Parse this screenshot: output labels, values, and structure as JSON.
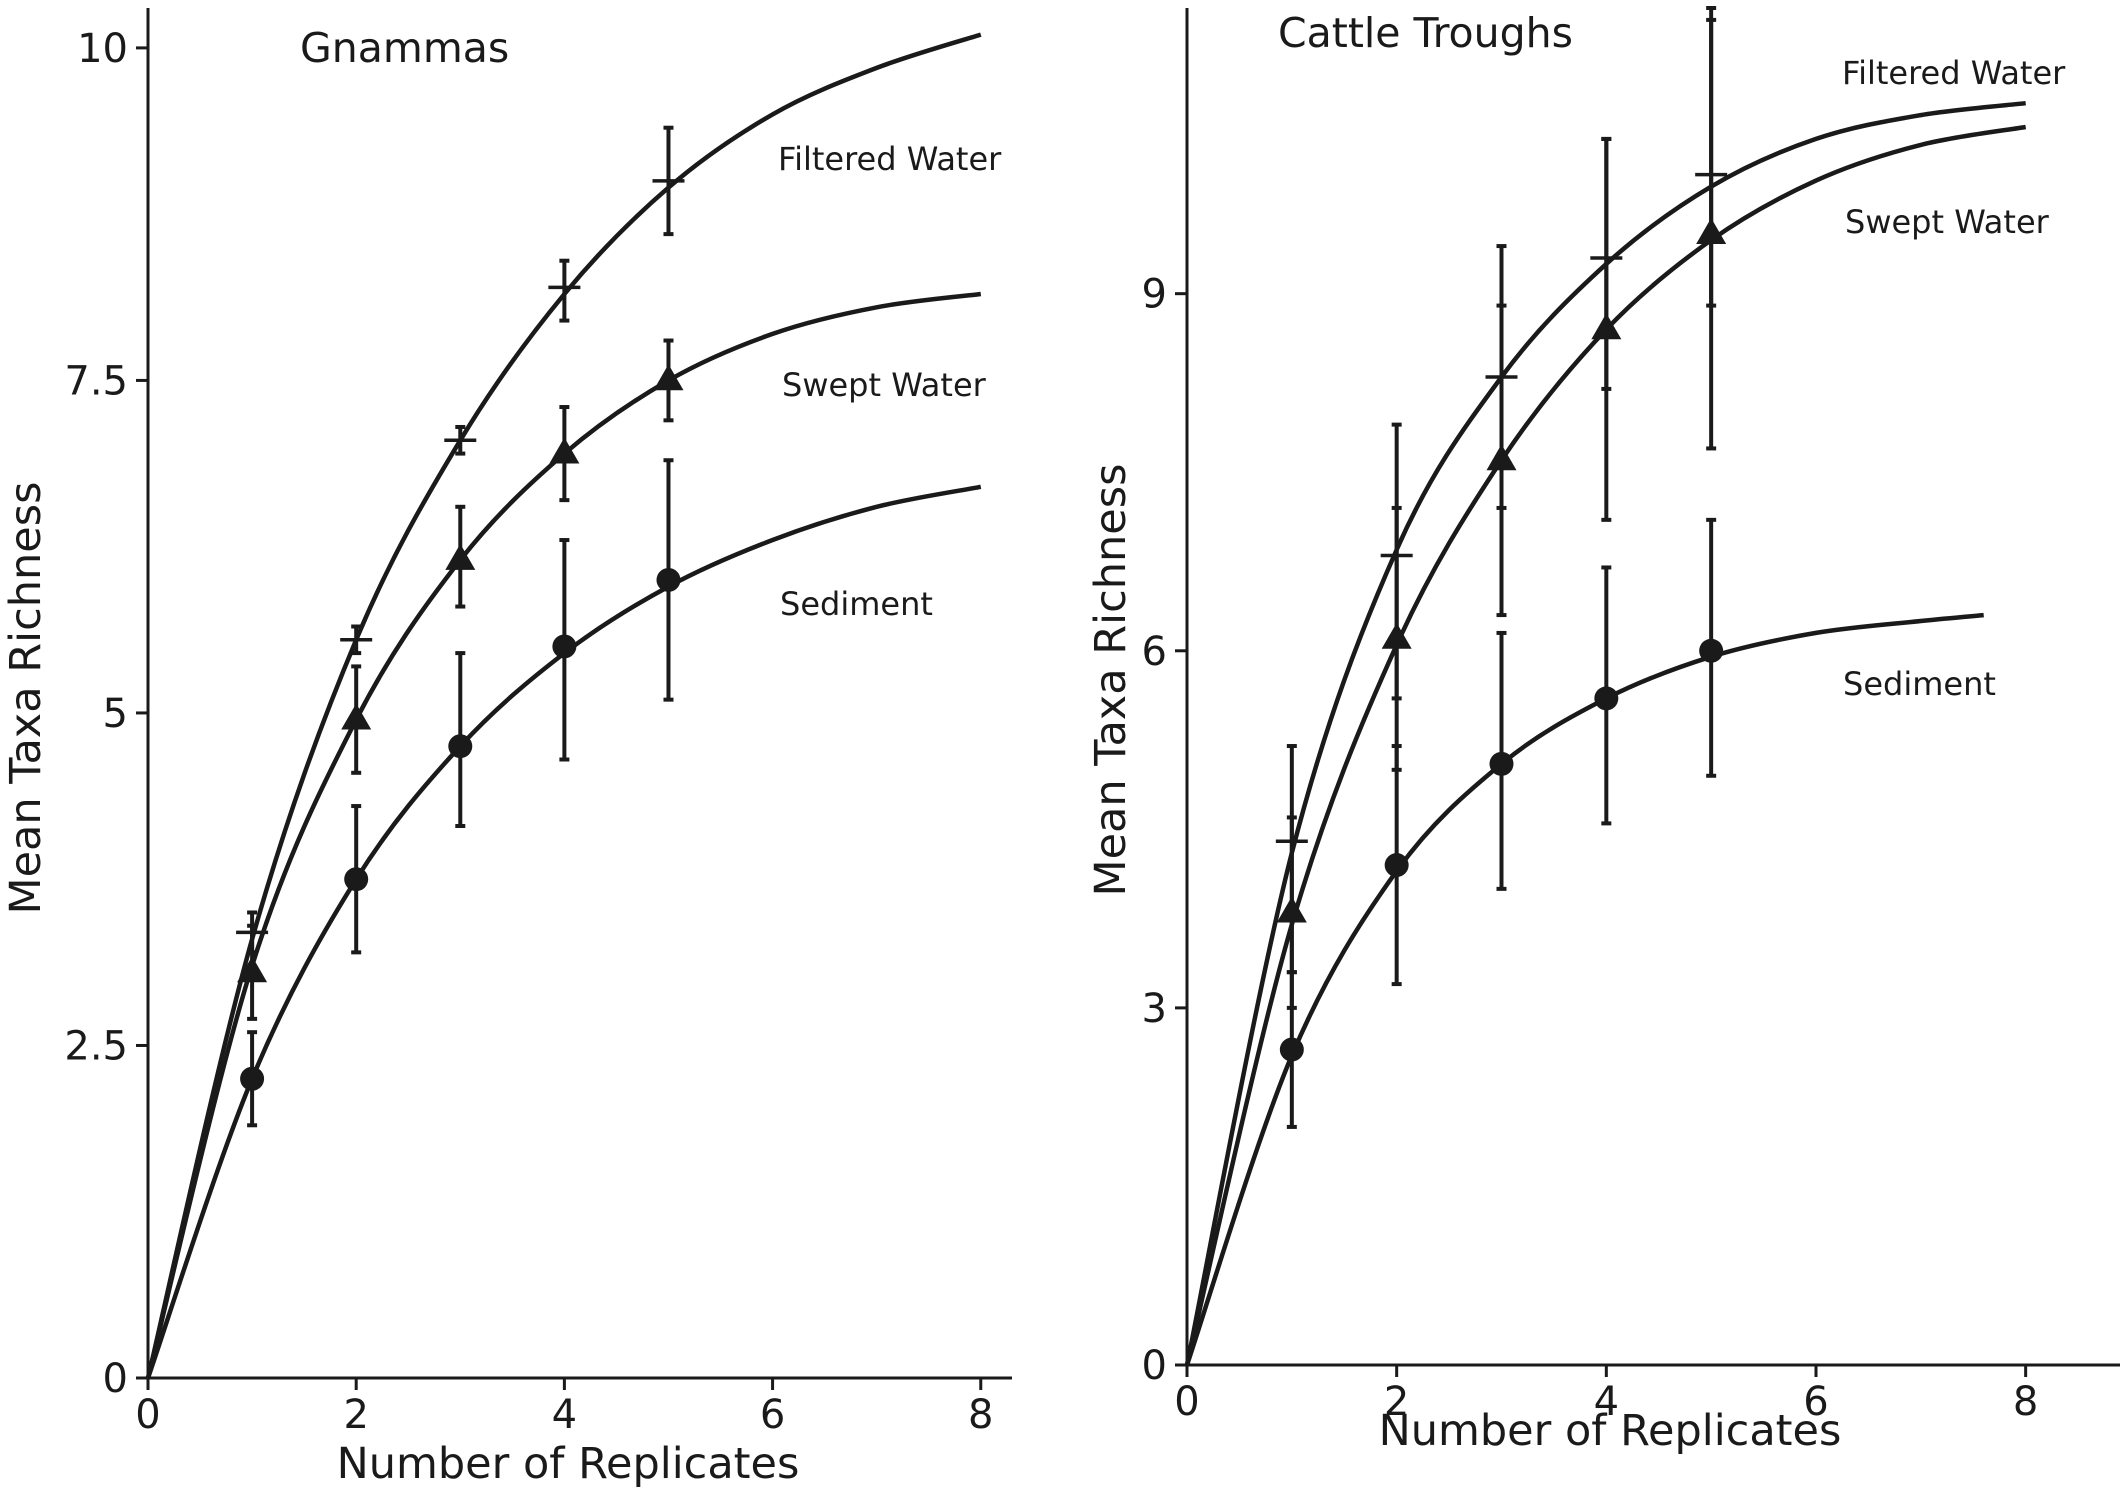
{
  "colors": {
    "ink": "#1a1a1a",
    "background": "#ffffff"
  },
  "chart_data": [
    {
      "type": "line",
      "title": "Gnammas",
      "xlabel": "Number of Replicates",
      "ylabel": "Mean Taxa Richness",
      "xlim": [
        0,
        8.3
      ],
      "ylim": [
        0,
        10.3
      ],
      "xticks": [
        "0",
        "2",
        "4",
        "6",
        "8"
      ],
      "yticks": [
        "0",
        "2.5",
        "5",
        "7.5",
        "10"
      ],
      "series": [
        {
          "name": "Filtered Water",
          "marker": "plus",
          "x": [
            1,
            2,
            3,
            4,
            5
          ],
          "y": [
            3.35,
            5.55,
            7.05,
            8.2,
            9.0
          ],
          "err_low": [
            3.2,
            5.45,
            6.95,
            7.95,
            8.6
          ],
          "err_high": [
            3.5,
            5.65,
            7.15,
            8.4,
            9.4
          ],
          "curve": {
            "x": [
              0,
              1,
              2,
              3,
              4,
              5,
              6,
              7,
              8
            ],
            "y": [
              0,
              3.3,
              5.55,
              7.05,
              8.15,
              8.95,
              9.5,
              9.85,
              10.1
            ]
          }
        },
        {
          "name": "Swept Water",
          "marker": "triangle",
          "x": [
            1,
            2,
            3,
            4,
            5
          ],
          "y": [
            3.05,
            4.95,
            6.15,
            6.95,
            7.5
          ],
          "err_low": [
            2.7,
            4.55,
            5.8,
            6.6,
            7.2
          ],
          "err_high": [
            3.4,
            5.35,
            6.55,
            7.3,
            7.8
          ],
          "curve": {
            "x": [
              0,
              1,
              2,
              3,
              4,
              5,
              6,
              7,
              8
            ],
            "y": [
              0,
              3.1,
              4.95,
              6.15,
              6.95,
              7.5,
              7.85,
              8.05,
              8.15
            ]
          }
        },
        {
          "name": "Sediment",
          "marker": "circle",
          "x": [
            1,
            2,
            3,
            4,
            5
          ],
          "y": [
            2.25,
            3.75,
            4.75,
            5.5,
            6.0
          ],
          "err_low": [
            1.9,
            3.2,
            4.15,
            4.65,
            5.1
          ],
          "err_high": [
            2.6,
            4.3,
            5.45,
            6.3,
            6.9
          ],
          "curve": {
            "x": [
              0,
              1,
              2,
              3,
              4,
              5,
              6,
              7,
              8
            ],
            "y": [
              0,
              2.25,
              3.75,
              4.75,
              5.45,
              5.95,
              6.3,
              6.55,
              6.7
            ]
          }
        }
      ]
    },
    {
      "type": "line",
      "title": "Cattle Troughs",
      "xlabel": "Number of Replicates",
      "ylabel": "Mean Taxa Richness",
      "xlim": [
        0,
        8.9
      ],
      "ylim": [
        0,
        11.4
      ],
      "xticks": [
        "0",
        "2",
        "4",
        "6",
        "8"
      ],
      "yticks": [
        "0",
        "3",
        "6",
        "9"
      ],
      "series": [
        {
          "name": "Filtered Water",
          "marker": "plus",
          "x": [
            1,
            2,
            3,
            4,
            5
          ],
          "y": [
            4.4,
            6.8,
            8.3,
            9.3,
            10.0
          ],
          "err_low": [
            3.3,
            5.6,
            7.2,
            8.2,
            8.9
          ],
          "err_high": [
            5.2,
            7.9,
            9.4,
            10.3,
            11.4
          ],
          "curve": {
            "x": [
              0,
              1,
              2,
              3,
              4,
              5,
              6,
              7,
              8
            ],
            "y": [
              0,
              4.3,
              6.85,
              8.3,
              9.25,
              9.9,
              10.3,
              10.5,
              10.6
            ]
          }
        },
        {
          "name": "Swept Water",
          "marker": "triangle",
          "x": [
            1,
            2,
            3,
            4,
            5
          ],
          "y": [
            3.8,
            6.1,
            7.6,
            8.7,
            9.5
          ],
          "err_low": [
            3.0,
            5.0,
            6.3,
            7.1,
            7.7
          ],
          "err_high": [
            4.6,
            7.2,
            8.9,
            10.3,
            11.3
          ],
          "curve": {
            "x": [
              0,
              1,
              2,
              3,
              4,
              5,
              6,
              7,
              8
            ],
            "y": [
              0,
              3.7,
              6.05,
              7.6,
              8.7,
              9.45,
              9.95,
              10.25,
              10.4
            ]
          }
        },
        {
          "name": "Sediment",
          "marker": "circle",
          "x": [
            1,
            2,
            3,
            4,
            5
          ],
          "y": [
            2.65,
            4.2,
            5.05,
            5.6,
            6.0
          ],
          "err_low": [
            2.0,
            3.2,
            4.0,
            4.55,
            4.95
          ],
          "err_high": [
            3.3,
            5.2,
            6.15,
            6.7,
            7.1
          ],
          "curve": {
            "x": [
              0,
              1,
              2,
              3,
              4,
              5,
              6,
              7,
              7.6
            ],
            "y": [
              0,
              2.6,
              4.15,
              5.05,
              5.6,
              5.95,
              6.15,
              6.25,
              6.3
            ]
          }
        }
      ]
    }
  ]
}
